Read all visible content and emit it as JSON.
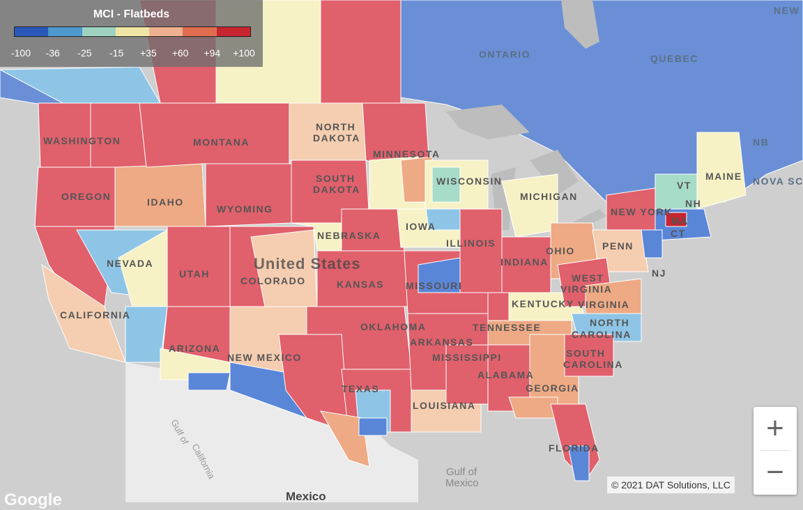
{
  "legend": {
    "title": "MCI - Flatbeds",
    "colors": [
      "#2a58b8",
      "#4d98cc",
      "#9ed2c1",
      "#efe6a6",
      "#eeb08f",
      "#df6d4e",
      "#c7252f"
    ],
    "ticks": [
      "-100",
      "-36",
      "-25",
      "-15",
      "+35",
      "+60",
      "+94",
      "+100"
    ]
  },
  "map_labels": {
    "ontario": "ONTARIO",
    "quebec": "QUEBEC",
    "new_brunswick": "NB",
    "nova_scotia": "NOVA SC",
    "newfoundland": "NEW AND",
    "washington": "WASHINGTON",
    "montana": "MONTANA",
    "north_dakota_1": "NORTH",
    "north_dakota_2": "DAKOTA",
    "minnesota": "MINNESOTA",
    "south_dakota_1": "SOUTH",
    "south_dakota_2": "DAKOTA",
    "wisconsin": "WISCONSIN",
    "michigan": "MICHIGAN",
    "oregon": "OREGON",
    "idaho": "IDAHO",
    "wyoming": "WYOMING",
    "iowa": "IOWA",
    "nebraska": "NEBRASKA",
    "new_york": "NEW YORK",
    "vermont": "VT",
    "new_hampshire": "NH",
    "maine": "MAINE",
    "massachusetts": "MA",
    "connecticut": "CT",
    "nevada": "NEVADA",
    "united_states": "United States",
    "illinois": "ILLINOIS",
    "indiana": "INDIANA",
    "ohio": "OHIO",
    "pennsylvania": "PENN",
    "new_jersey": "NJ",
    "utah": "UTAH",
    "colorado": "COLORADO",
    "kansas": "KANSAS",
    "missouri": "MISSOURI",
    "west_virginia_1": "WEST",
    "west_virginia_2": "VIRGINIA",
    "virginia": "VIRGINIA",
    "kentucky": "KENTUCKY",
    "california": "CALIFORNIA",
    "oklahoma": "OKLAHOMA",
    "tennessee": "TENNESSEE",
    "north_carolina_1": "NORTH",
    "north_carolina_2": "CAROLINA",
    "arizona": "ARIZONA",
    "new_mexico": "NEW MEXICO",
    "arkansas": "ARKANSAS",
    "south_carolina_1": "SOUTH",
    "south_carolina_2": "CAROLINA",
    "mississippi": "MISSISSIPPI",
    "alabama": "ALABAMA",
    "georgia": "GEORGIA",
    "texas": "TEXAS",
    "louisiana": "LOUISIANA",
    "florida": "FLORIDA",
    "gulf_of_california_1": "Gulf of",
    "gulf_of_california_2": "California",
    "gulf_of_mexico_1": "Gulf of",
    "gulf_of_mexico_2": "Mexico",
    "mexico": "Mexico"
  },
  "controls": {
    "zoom_in": "+",
    "zoom_out": "−"
  },
  "footer": {
    "copyright": "© 2021 DAT Solutions, LLC",
    "google": "Google"
  }
}
